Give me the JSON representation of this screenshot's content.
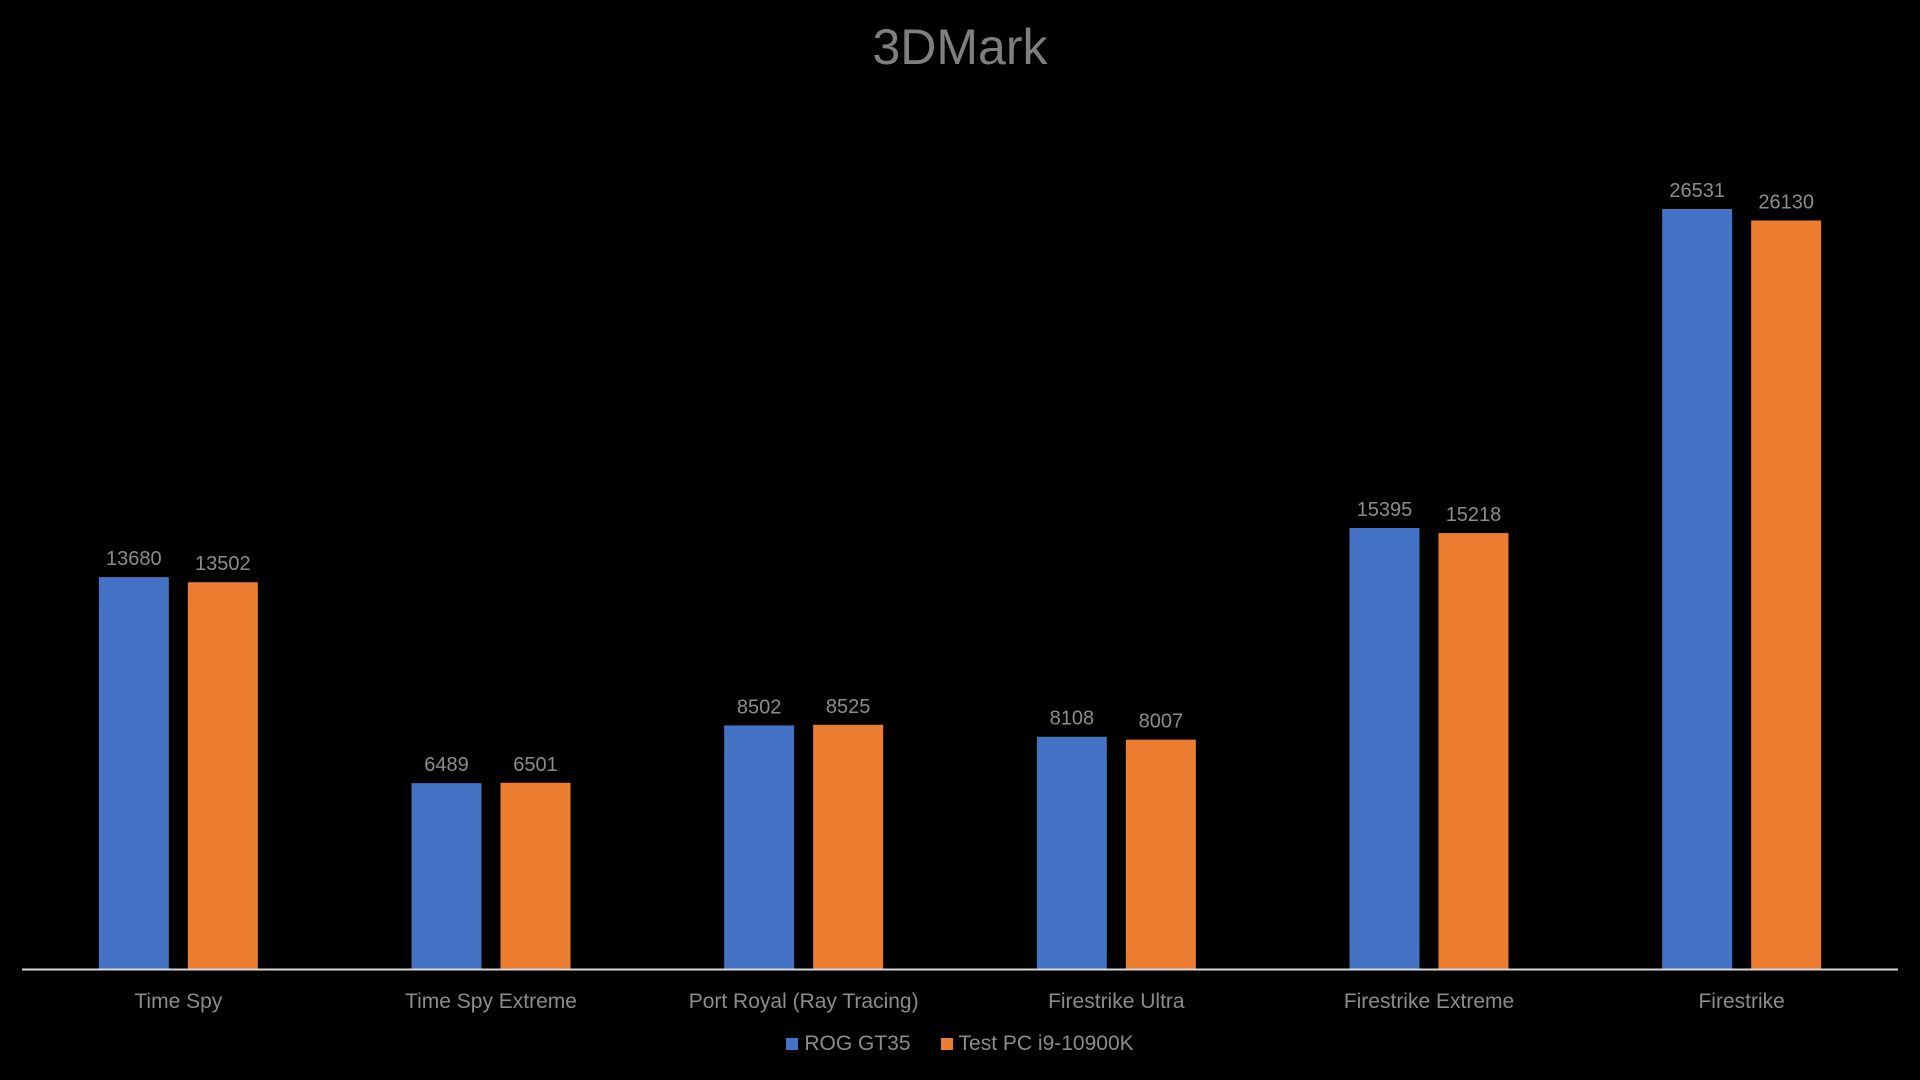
{
  "chart_data": {
    "type": "bar",
    "title": "3DMark",
    "categories": [
      "Time Spy",
      "Time Spy Extreme",
      "Port Royal (Ray Tracing)",
      "Firestrike Ultra",
      "Firestrike Extreme",
      "Firestrike"
    ],
    "series": [
      {
        "name": "ROG GT35",
        "color": "#4472c4",
        "values": [
          13680,
          6489,
          8502,
          8108,
          15395,
          26531
        ]
      },
      {
        "name": "Test PC i9-10900K",
        "color": "#ed7d31",
        "values": [
          13502,
          6501,
          8525,
          8007,
          15218,
          26130
        ]
      }
    ],
    "xlabel": "",
    "ylabel": "",
    "ylim": [
      0,
      26531
    ],
    "grid": false,
    "data_labels": true,
    "legend_position": "bottom"
  }
}
